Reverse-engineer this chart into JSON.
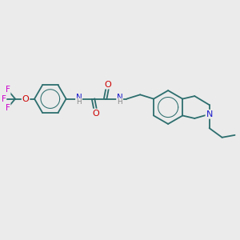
{
  "background_color": "#ebebeb",
  "bond_color": "#2d6e6e",
  "atom_colors": {
    "N": "#1a1acc",
    "O": "#cc0000",
    "F": "#cc00cc",
    "H_label": "#888888",
    "C": "#2d6e6e"
  },
  "figsize": [
    3.0,
    3.0
  ],
  "dpi": 100
}
